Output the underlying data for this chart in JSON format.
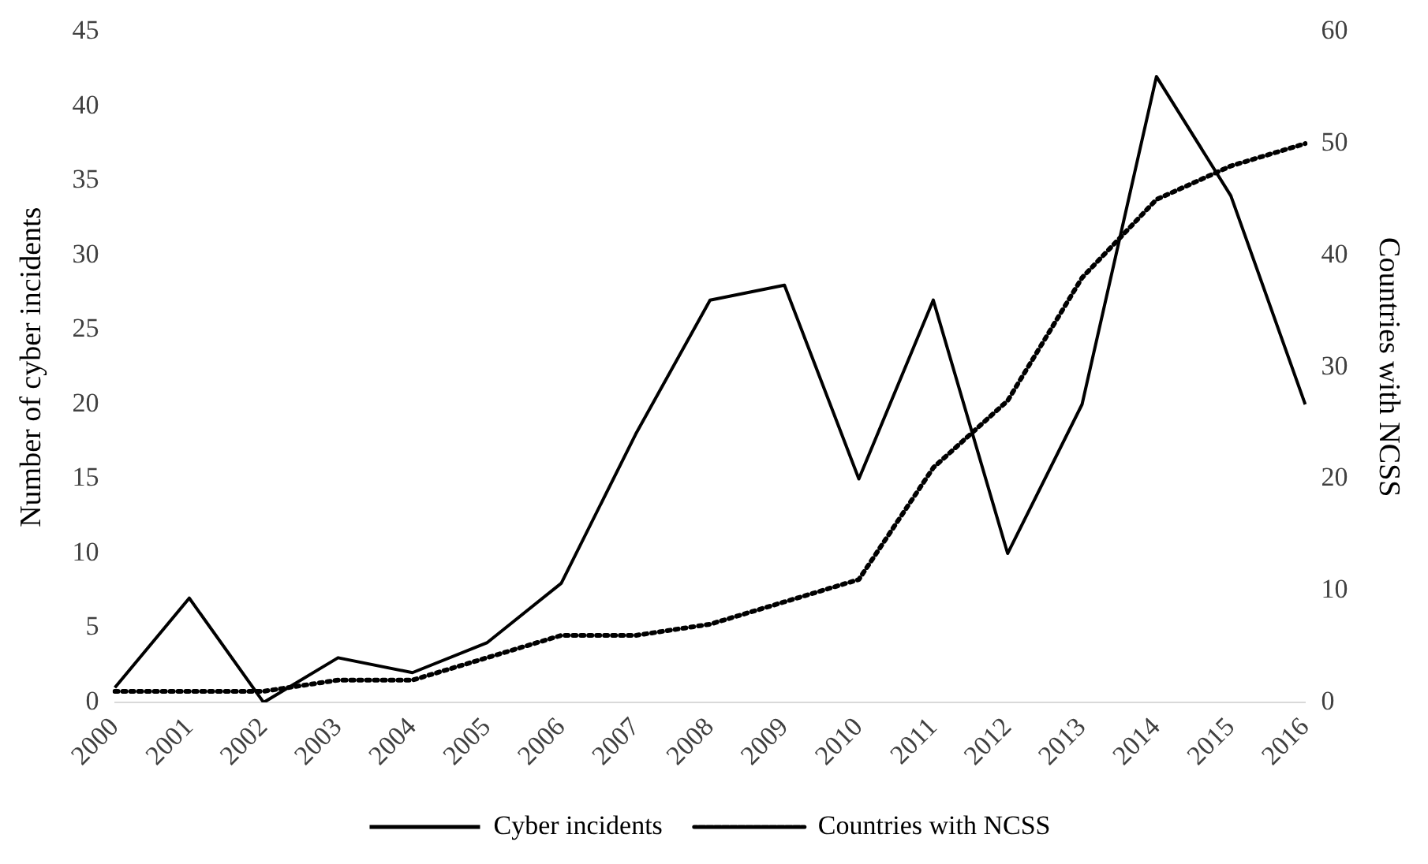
{
  "chart_data": {
    "type": "line",
    "ylabel": "Number of cyber incidents",
    "y2label": "Countries with NCSS",
    "categories": [
      "2000",
      "2001",
      "2002",
      "2003",
      "2004",
      "2005",
      "2006",
      "2007",
      "2008",
      "2009",
      "2010",
      "2011",
      "2012",
      "2013",
      "2014",
      "2015",
      "2016"
    ],
    "series": [
      {
        "name": "Cyber incidents",
        "color": "#000000",
        "line_style": "solid",
        "values": [
          1,
          7,
          0,
          3,
          2,
          4,
          8,
          18,
          27,
          28,
          15,
          27,
          10,
          20,
          42,
          34,
          20
        ]
      },
      {
        "name": "Countries with NCSS",
        "color": "#000000",
        "line_style": "dotted",
        "axis": "y2",
        "values": [
          1,
          1,
          1,
          2,
          2,
          4,
          6,
          6,
          7,
          9,
          11,
          21,
          27,
          38,
          45,
          48,
          50
        ]
      }
    ],
    "ylim": [
      0,
      45
    ],
    "yticks": [
      0,
      5,
      10,
      15,
      20,
      25,
      30,
      35,
      40,
      45
    ],
    "y2lim": [
      0,
      60
    ],
    "y2ticks": [
      0,
      10,
      20,
      30,
      40,
      50,
      60
    ],
    "grid": false,
    "legend": "bottom",
    "marker": "none"
  }
}
